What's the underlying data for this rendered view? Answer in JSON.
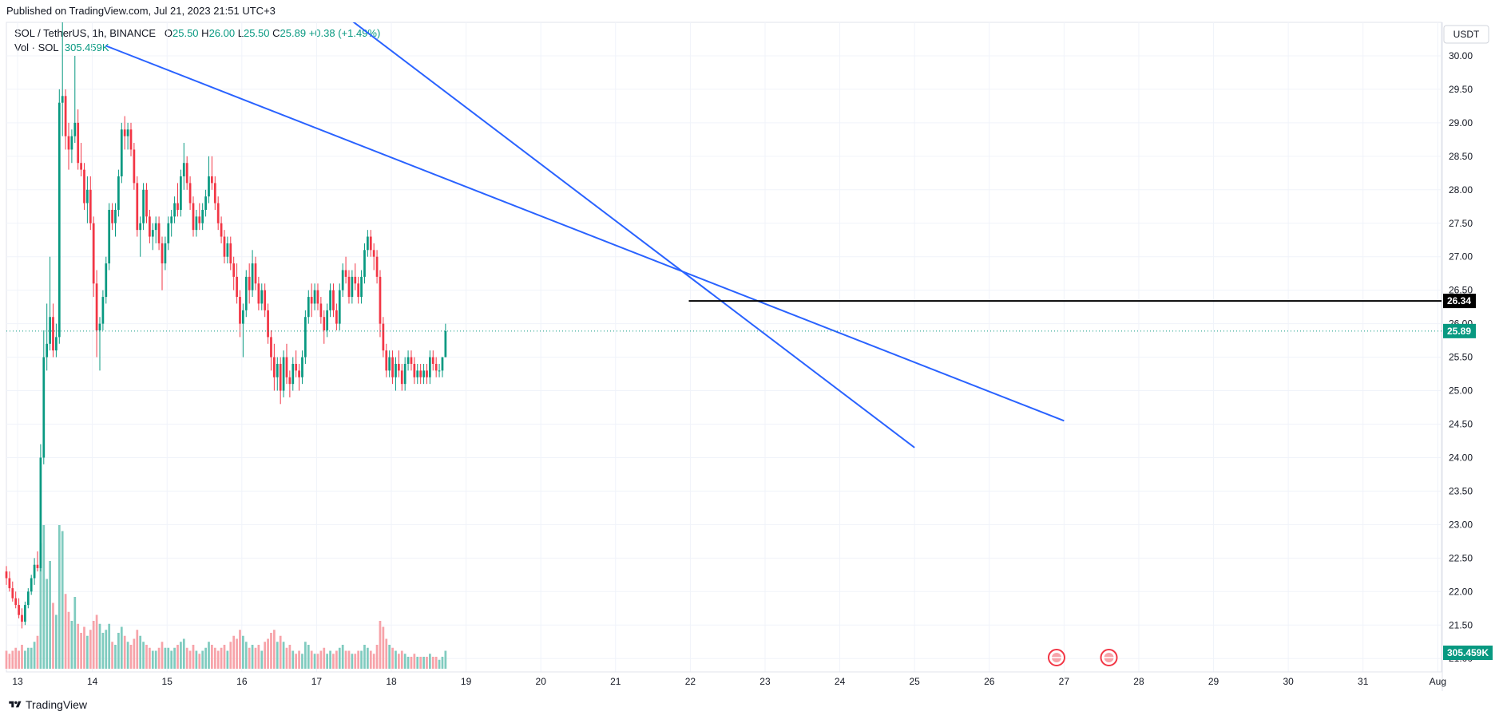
{
  "header": {
    "published": "Published on TradingView.com, Jul 21, 2023 21:51 UTC+3"
  },
  "legend": {
    "symbol": "SOL / TetherUS, 1h, BINANCE",
    "open_label": "O",
    "open": "25.50",
    "high_label": "H",
    "high": "26.00",
    "low_label": "L",
    "low": "25.50",
    "close_label": "C",
    "close": "25.89",
    "change": "+0.38 (+1.49%)",
    "vol_label": "Vol · SOL",
    "vol_value": "305.459K"
  },
  "footer": {
    "brand": "TradingView",
    "logo_icon": "tradingview-logo-icon"
  },
  "colors": {
    "up": "#089981",
    "down": "#f23645",
    "vol_up": "#7fcbbf",
    "vol_down": "#f7a3a9",
    "trendline": "#2962ff",
    "hline": "#000000",
    "grid": "#f0f3fa"
  },
  "chart_data": {
    "type": "candlestick",
    "currency": "USDT",
    "y_ticks": [
      "30.00",
      "29.50",
      "29.00",
      "28.50",
      "28.00",
      "27.50",
      "27.00",
      "26.50",
      "26.00",
      "25.50",
      "25.00",
      "24.50",
      "24.00",
      "23.50",
      "23.00",
      "22.50",
      "22.00",
      "21.50",
      "21.00"
    ],
    "ylim": [
      20.8,
      30.5
    ],
    "x_ticks": [
      "13",
      "14",
      "15",
      "16",
      "17",
      "18",
      "19",
      "20",
      "21",
      "22",
      "23",
      "24",
      "25",
      "26",
      "27",
      "28",
      "29",
      "30",
      "31",
      "Aug"
    ],
    "x_tick_days": [
      13,
      14,
      15,
      16,
      17,
      18,
      19,
      20,
      21,
      22,
      23,
      24,
      25,
      26,
      27,
      28,
      29,
      30,
      31,
      32
    ],
    "xlim": [
      12.85,
      32.05
    ],
    "candles_start_day": 12.85,
    "candle_hours": 1,
    "candles": [
      {
        "o": 22.3,
        "h": 22.38,
        "l": 22.1,
        "c": 22.2,
        "v": 0.6
      },
      {
        "o": 22.2,
        "h": 22.3,
        "l": 22.0,
        "c": 22.05,
        "v": 0.5
      },
      {
        "o": 22.05,
        "h": 22.15,
        "l": 21.85,
        "c": 21.9,
        "v": 0.6
      },
      {
        "o": 21.9,
        "h": 22.0,
        "l": 21.75,
        "c": 21.8,
        "v": 0.7
      },
      {
        "o": 21.8,
        "h": 21.9,
        "l": 21.6,
        "c": 21.65,
        "v": 0.6
      },
      {
        "o": 21.65,
        "h": 21.75,
        "l": 21.45,
        "c": 21.55,
        "v": 0.8
      },
      {
        "o": 21.55,
        "h": 21.85,
        "l": 21.5,
        "c": 21.8,
        "v": 0.6
      },
      {
        "o": 21.8,
        "h": 22.05,
        "l": 21.75,
        "c": 22.0,
        "v": 0.7
      },
      {
        "o": 22.0,
        "h": 22.25,
        "l": 21.95,
        "c": 22.2,
        "v": 0.7
      },
      {
        "o": 22.2,
        "h": 22.5,
        "l": 22.1,
        "c": 22.4,
        "v": 0.9
      },
      {
        "o": 22.4,
        "h": 22.6,
        "l": 22.3,
        "c": 22.35,
        "v": 1.1
      },
      {
        "o": 22.35,
        "h": 24.2,
        "l": 22.3,
        "c": 24.0,
        "v": 4.2
      },
      {
        "o": 24.0,
        "h": 25.9,
        "l": 23.9,
        "c": 25.5,
        "v": 4.8
      },
      {
        "o": 25.5,
        "h": 26.3,
        "l": 25.3,
        "c": 25.7,
        "v": 3.0
      },
      {
        "o": 25.7,
        "h": 27.0,
        "l": 25.6,
        "c": 26.1,
        "v": 3.6
      },
      {
        "o": 26.1,
        "h": 26.3,
        "l": 25.5,
        "c": 25.6,
        "v": 2.2
      },
      {
        "o": 25.6,
        "h": 26.0,
        "l": 25.5,
        "c": 25.8,
        "v": 1.8
      },
      {
        "o": 25.8,
        "h": 29.5,
        "l": 25.7,
        "c": 29.3,
        "v": 4.8
      },
      {
        "o": 29.3,
        "h": 30.5,
        "l": 28.8,
        "c": 29.4,
        "v": 4.6
      },
      {
        "o": 29.4,
        "h": 29.5,
        "l": 28.6,
        "c": 28.8,
        "v": 2.5
      },
      {
        "o": 28.8,
        "h": 29.0,
        "l": 28.3,
        "c": 28.6,
        "v": 1.9
      },
      {
        "o": 28.6,
        "h": 28.9,
        "l": 28.4,
        "c": 28.8,
        "v": 1.6
      },
      {
        "o": 28.8,
        "h": 30.0,
        "l": 28.7,
        "c": 29.0,
        "v": 2.4
      },
      {
        "o": 29.0,
        "h": 29.2,
        "l": 28.3,
        "c": 28.4,
        "v": 1.5
      },
      {
        "o": 28.4,
        "h": 28.7,
        "l": 28.2,
        "c": 28.3,
        "v": 1.2
      },
      {
        "o": 28.3,
        "h": 28.4,
        "l": 27.7,
        "c": 27.8,
        "v": 1.4
      },
      {
        "o": 27.8,
        "h": 28.2,
        "l": 27.5,
        "c": 28.0,
        "v": 1.1
      },
      {
        "o": 28.0,
        "h": 28.2,
        "l": 27.4,
        "c": 27.5,
        "v": 1.3
      },
      {
        "o": 27.5,
        "h": 27.6,
        "l": 26.4,
        "c": 26.6,
        "v": 1.6
      },
      {
        "o": 26.6,
        "h": 26.8,
        "l": 25.5,
        "c": 25.9,
        "v": 1.8
      },
      {
        "o": 25.9,
        "h": 26.1,
        "l": 25.3,
        "c": 26.0,
        "v": 1.5
      },
      {
        "o": 26.0,
        "h": 26.5,
        "l": 25.9,
        "c": 26.4,
        "v": 1.2
      },
      {
        "o": 26.4,
        "h": 27.0,
        "l": 26.3,
        "c": 26.9,
        "v": 1.3
      },
      {
        "o": 26.9,
        "h": 27.8,
        "l": 26.8,
        "c": 27.7,
        "v": 1.5
      },
      {
        "o": 27.7,
        "h": 27.8,
        "l": 27.4,
        "c": 27.5,
        "v": 0.9
      },
      {
        "o": 27.5,
        "h": 27.8,
        "l": 27.3,
        "c": 27.7,
        "v": 0.8
      },
      {
        "o": 27.7,
        "h": 28.3,
        "l": 27.6,
        "c": 28.2,
        "v": 1.2
      },
      {
        "o": 28.2,
        "h": 29.0,
        "l": 28.1,
        "c": 28.9,
        "v": 1.4
      },
      {
        "o": 28.9,
        "h": 29.1,
        "l": 28.6,
        "c": 28.8,
        "v": 1.1
      },
      {
        "o": 28.8,
        "h": 29.0,
        "l": 28.6,
        "c": 28.9,
        "v": 0.9
      },
      {
        "o": 28.9,
        "h": 29.0,
        "l": 28.5,
        "c": 28.6,
        "v": 0.8
      },
      {
        "o": 28.6,
        "h": 28.7,
        "l": 28.0,
        "c": 28.1,
        "v": 1.0
      },
      {
        "o": 28.1,
        "h": 28.2,
        "l": 27.3,
        "c": 27.4,
        "v": 1.3
      },
      {
        "o": 27.4,
        "h": 27.6,
        "l": 27.0,
        "c": 27.5,
        "v": 1.1
      },
      {
        "o": 27.5,
        "h": 28.1,
        "l": 27.4,
        "c": 28.0,
        "v": 0.9
      },
      {
        "o": 28.0,
        "h": 28.1,
        "l": 27.5,
        "c": 27.6,
        "v": 0.8
      },
      {
        "o": 27.6,
        "h": 27.7,
        "l": 27.2,
        "c": 27.3,
        "v": 0.7
      },
      {
        "o": 27.3,
        "h": 27.5,
        "l": 27.1,
        "c": 27.4,
        "v": 0.6
      },
      {
        "o": 27.4,
        "h": 27.6,
        "l": 27.2,
        "c": 27.5,
        "v": 0.6
      },
      {
        "o": 27.5,
        "h": 27.6,
        "l": 27.1,
        "c": 27.2,
        "v": 0.7
      },
      {
        "o": 27.2,
        "h": 27.3,
        "l": 26.5,
        "c": 26.9,
        "v": 0.9
      },
      {
        "o": 26.9,
        "h": 27.3,
        "l": 26.8,
        "c": 27.2,
        "v": 0.7
      },
      {
        "o": 27.2,
        "h": 27.6,
        "l": 27.1,
        "c": 27.5,
        "v": 0.7
      },
      {
        "o": 27.5,
        "h": 27.7,
        "l": 27.3,
        "c": 27.6,
        "v": 0.6
      },
      {
        "o": 27.6,
        "h": 27.9,
        "l": 27.5,
        "c": 27.8,
        "v": 0.7
      },
      {
        "o": 27.8,
        "h": 28.1,
        "l": 27.6,
        "c": 27.7,
        "v": 0.8
      },
      {
        "o": 27.7,
        "h": 28.3,
        "l": 27.6,
        "c": 28.2,
        "v": 0.9
      },
      {
        "o": 28.2,
        "h": 28.7,
        "l": 28.0,
        "c": 28.4,
        "v": 1.0
      },
      {
        "o": 28.4,
        "h": 28.5,
        "l": 28.0,
        "c": 28.1,
        "v": 0.7
      },
      {
        "o": 28.1,
        "h": 28.2,
        "l": 27.7,
        "c": 27.8,
        "v": 0.6
      },
      {
        "o": 27.8,
        "h": 27.9,
        "l": 27.3,
        "c": 27.4,
        "v": 0.8
      },
      {
        "o": 27.4,
        "h": 27.7,
        "l": 27.3,
        "c": 27.6,
        "v": 0.6
      },
      {
        "o": 27.6,
        "h": 27.8,
        "l": 27.4,
        "c": 27.5,
        "v": 0.5
      },
      {
        "o": 27.5,
        "h": 27.8,
        "l": 27.4,
        "c": 27.7,
        "v": 0.6
      },
      {
        "o": 27.7,
        "h": 28.0,
        "l": 27.6,
        "c": 27.9,
        "v": 0.7
      },
      {
        "o": 27.9,
        "h": 28.5,
        "l": 27.8,
        "c": 28.2,
        "v": 0.9
      },
      {
        "o": 28.2,
        "h": 28.5,
        "l": 28.0,
        "c": 28.1,
        "v": 0.8
      },
      {
        "o": 28.1,
        "h": 28.2,
        "l": 27.7,
        "c": 27.8,
        "v": 0.7
      },
      {
        "o": 27.8,
        "h": 27.9,
        "l": 27.4,
        "c": 27.5,
        "v": 0.6
      },
      {
        "o": 27.5,
        "h": 27.6,
        "l": 27.2,
        "c": 27.3,
        "v": 0.7
      },
      {
        "o": 27.3,
        "h": 27.4,
        "l": 26.9,
        "c": 27.0,
        "v": 0.8
      },
      {
        "o": 27.0,
        "h": 27.3,
        "l": 26.9,
        "c": 27.2,
        "v": 0.6
      },
      {
        "o": 27.2,
        "h": 27.3,
        "l": 26.8,
        "c": 26.9,
        "v": 0.9
      },
      {
        "o": 26.9,
        "h": 27.0,
        "l": 26.5,
        "c": 26.7,
        "v": 1.1
      },
      {
        "o": 26.7,
        "h": 26.9,
        "l": 26.3,
        "c": 26.4,
        "v": 1.0
      },
      {
        "o": 26.4,
        "h": 26.5,
        "l": 25.8,
        "c": 26.0,
        "v": 1.3
      },
      {
        "o": 26.0,
        "h": 26.3,
        "l": 25.5,
        "c": 26.2,
        "v": 1.1
      },
      {
        "o": 26.2,
        "h": 26.8,
        "l": 26.1,
        "c": 26.7,
        "v": 0.9
      },
      {
        "o": 26.7,
        "h": 26.9,
        "l": 26.3,
        "c": 26.5,
        "v": 0.7
      },
      {
        "o": 26.5,
        "h": 27.1,
        "l": 26.4,
        "c": 26.9,
        "v": 0.8
      },
      {
        "o": 26.9,
        "h": 27.0,
        "l": 26.5,
        "c": 26.6,
        "v": 0.7
      },
      {
        "o": 26.6,
        "h": 26.7,
        "l": 26.2,
        "c": 26.3,
        "v": 0.8
      },
      {
        "o": 26.3,
        "h": 26.6,
        "l": 26.2,
        "c": 26.5,
        "v": 0.6
      },
      {
        "o": 26.5,
        "h": 26.6,
        "l": 26.1,
        "c": 26.2,
        "v": 0.9
      },
      {
        "o": 26.2,
        "h": 26.3,
        "l": 25.7,
        "c": 25.8,
        "v": 1.0
      },
      {
        "o": 25.8,
        "h": 25.9,
        "l": 25.3,
        "c": 25.5,
        "v": 1.2
      },
      {
        "o": 25.5,
        "h": 25.7,
        "l": 25.0,
        "c": 25.2,
        "v": 1.3
      },
      {
        "o": 25.2,
        "h": 25.5,
        "l": 25.0,
        "c": 25.4,
        "v": 0.9
      },
      {
        "o": 25.4,
        "h": 25.5,
        "l": 24.8,
        "c": 25.0,
        "v": 1.1
      },
      {
        "o": 25.0,
        "h": 25.6,
        "l": 24.9,
        "c": 25.5,
        "v": 0.9
      },
      {
        "o": 25.5,
        "h": 25.7,
        "l": 25.1,
        "c": 25.2,
        "v": 0.7
      },
      {
        "o": 25.2,
        "h": 25.3,
        "l": 24.9,
        "c": 25.1,
        "v": 0.8
      },
      {
        "o": 25.1,
        "h": 25.5,
        "l": 25.0,
        "c": 25.4,
        "v": 0.6
      },
      {
        "o": 25.4,
        "h": 25.6,
        "l": 25.2,
        "c": 25.3,
        "v": 0.5
      },
      {
        "o": 25.3,
        "h": 25.4,
        "l": 25.0,
        "c": 25.2,
        "v": 0.6
      },
      {
        "o": 25.2,
        "h": 25.6,
        "l": 25.1,
        "c": 25.5,
        "v": 0.5
      },
      {
        "o": 25.5,
        "h": 26.2,
        "l": 25.4,
        "c": 26.1,
        "v": 0.9
      },
      {
        "o": 26.1,
        "h": 26.5,
        "l": 26.0,
        "c": 26.4,
        "v": 0.8
      },
      {
        "o": 26.4,
        "h": 26.6,
        "l": 26.1,
        "c": 26.3,
        "v": 0.6
      },
      {
        "o": 26.3,
        "h": 26.6,
        "l": 26.2,
        "c": 26.5,
        "v": 0.5
      },
      {
        "o": 26.5,
        "h": 26.6,
        "l": 26.2,
        "c": 26.3,
        "v": 0.5
      },
      {
        "o": 26.3,
        "h": 26.4,
        "l": 26.0,
        "c": 26.1,
        "v": 0.6
      },
      {
        "o": 26.1,
        "h": 26.2,
        "l": 25.7,
        "c": 25.9,
        "v": 0.7
      },
      {
        "o": 25.9,
        "h": 26.3,
        "l": 25.8,
        "c": 26.2,
        "v": 0.5
      },
      {
        "o": 26.2,
        "h": 26.6,
        "l": 26.1,
        "c": 26.5,
        "v": 0.6
      },
      {
        "o": 26.5,
        "h": 26.6,
        "l": 26.1,
        "c": 26.2,
        "v": 0.5
      },
      {
        "o": 26.2,
        "h": 26.3,
        "l": 25.9,
        "c": 26.0,
        "v": 0.6
      },
      {
        "o": 26.0,
        "h": 26.6,
        "l": 25.9,
        "c": 26.5,
        "v": 0.7
      },
      {
        "o": 26.5,
        "h": 26.9,
        "l": 26.4,
        "c": 26.8,
        "v": 0.8
      },
      {
        "o": 26.8,
        "h": 27.0,
        "l": 26.6,
        "c": 26.7,
        "v": 0.6
      },
      {
        "o": 26.7,
        "h": 26.8,
        "l": 26.3,
        "c": 26.4,
        "v": 0.6
      },
      {
        "o": 26.4,
        "h": 26.8,
        "l": 26.3,
        "c": 26.7,
        "v": 0.5
      },
      {
        "o": 26.7,
        "h": 26.9,
        "l": 26.5,
        "c": 26.6,
        "v": 0.5
      },
      {
        "o": 26.6,
        "h": 26.7,
        "l": 26.3,
        "c": 26.4,
        "v": 0.6
      },
      {
        "o": 26.4,
        "h": 26.8,
        "l": 26.3,
        "c": 26.7,
        "v": 0.6
      },
      {
        "o": 26.7,
        "h": 27.2,
        "l": 26.6,
        "c": 27.1,
        "v": 0.8
      },
      {
        "o": 27.1,
        "h": 27.4,
        "l": 27.0,
        "c": 27.3,
        "v": 0.7
      },
      {
        "o": 27.3,
        "h": 27.4,
        "l": 27.0,
        "c": 27.1,
        "v": 0.6
      },
      {
        "o": 27.1,
        "h": 27.2,
        "l": 26.8,
        "c": 27.0,
        "v": 0.5
      },
      {
        "o": 27.0,
        "h": 27.1,
        "l": 26.6,
        "c": 26.7,
        "v": 0.8
      },
      {
        "o": 26.7,
        "h": 26.8,
        "l": 25.8,
        "c": 26.0,
        "v": 1.6
      },
      {
        "o": 26.0,
        "h": 26.1,
        "l": 25.5,
        "c": 25.6,
        "v": 1.4
      },
      {
        "o": 25.6,
        "h": 25.7,
        "l": 25.2,
        "c": 25.3,
        "v": 1.0
      },
      {
        "o": 25.3,
        "h": 25.6,
        "l": 25.2,
        "c": 25.5,
        "v": 0.8
      },
      {
        "o": 25.5,
        "h": 25.6,
        "l": 25.1,
        "c": 25.2,
        "v": 0.7
      },
      {
        "o": 25.2,
        "h": 25.5,
        "l": 25.0,
        "c": 25.4,
        "v": 0.6
      },
      {
        "o": 25.4,
        "h": 25.6,
        "l": 25.2,
        "c": 25.3,
        "v": 0.5
      },
      {
        "o": 25.3,
        "h": 25.4,
        "l": 25.0,
        "c": 25.1,
        "v": 0.6
      },
      {
        "o": 25.1,
        "h": 25.5,
        "l": 25.0,
        "c": 25.4,
        "v": 0.5
      },
      {
        "o": 25.4,
        "h": 25.6,
        "l": 25.3,
        "c": 25.5,
        "v": 0.4
      },
      {
        "o": 25.5,
        "h": 25.6,
        "l": 25.3,
        "c": 25.4,
        "v": 0.4
      },
      {
        "o": 25.4,
        "h": 25.5,
        "l": 25.1,
        "c": 25.2,
        "v": 0.5
      },
      {
        "o": 25.2,
        "h": 25.4,
        "l": 25.1,
        "c": 25.3,
        "v": 0.4
      },
      {
        "o": 25.3,
        "h": 25.4,
        "l": 25.1,
        "c": 25.2,
        "v": 0.4
      },
      {
        "o": 25.2,
        "h": 25.4,
        "l": 25.1,
        "c": 25.3,
        "v": 0.4
      },
      {
        "o": 25.3,
        "h": 25.4,
        "l": 25.1,
        "c": 25.2,
        "v": 0.4
      },
      {
        "o": 25.2,
        "h": 25.6,
        "l": 25.1,
        "c": 25.5,
        "v": 0.5
      },
      {
        "o": 25.5,
        "h": 25.6,
        "l": 25.3,
        "c": 25.4,
        "v": 0.4
      },
      {
        "o": 25.4,
        "h": 25.5,
        "l": 25.2,
        "c": 25.3,
        "v": 0.4
      },
      {
        "o": 25.3,
        "h": 25.4,
        "l": 25.2,
        "c": 25.3,
        "v": 0.3
      },
      {
        "o": 25.3,
        "h": 25.5,
        "l": 25.2,
        "c": 25.5,
        "v": 0.4
      },
      {
        "o": 25.5,
        "h": 26.0,
        "l": 25.5,
        "c": 25.89,
        "v": 0.6
      }
    ],
    "trendlines": [
      {
        "name": "upper-trendline",
        "x1": 14.18,
        "y1": 30.15,
        "x2": 27.0,
        "y2": 24.55
      },
      {
        "name": "steep-trendline",
        "x1": 16.2,
        "y1": 31.6,
        "x2": 25.0,
        "y2": 24.15
      }
    ],
    "hline": {
      "x_start": 21.98,
      "y": 26.34,
      "label": "26.34"
    },
    "last_price": {
      "y": 25.89,
      "label": "25.89"
    },
    "volume_label": "305.459K",
    "events": [
      {
        "x": 26.9
      },
      {
        "x": 27.6
      }
    ]
  }
}
